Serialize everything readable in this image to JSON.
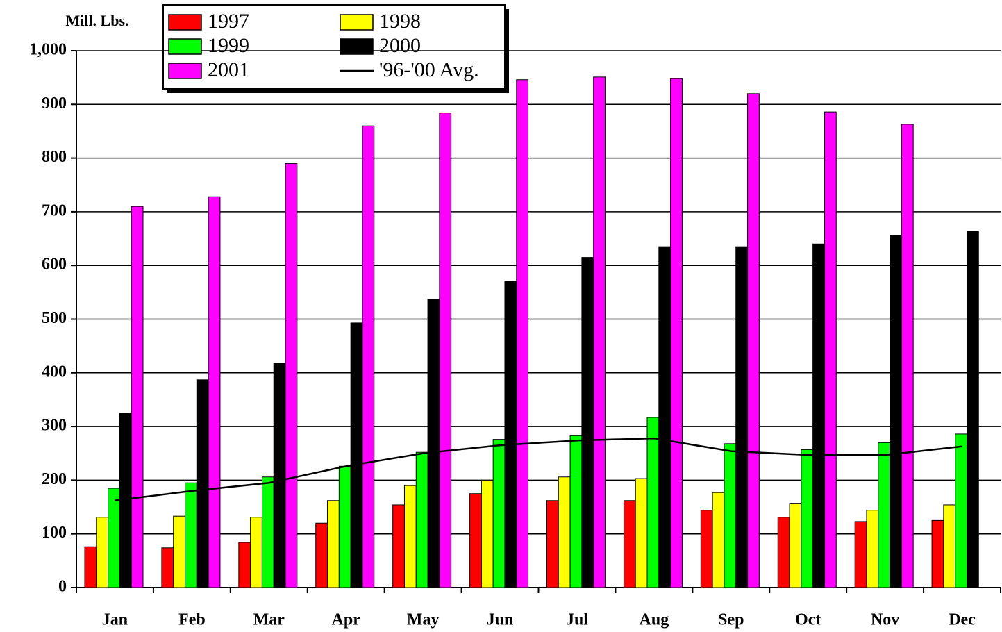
{
  "chart_data": {
    "type": "bar",
    "y_label": "Mill. Lbs.",
    "categories": [
      "Jan",
      "Feb",
      "Mar",
      "Apr",
      "May",
      "Jun",
      "Jul",
      "Aug",
      "Sep",
      "Oct",
      "Nov",
      "Dec"
    ],
    "series": [
      {
        "name": "1997",
        "color": "#ff0000",
        "values": [
          76,
          74,
          84,
          120,
          154,
          175,
          162,
          162,
          144,
          131,
          123,
          125
        ]
      },
      {
        "name": "1998",
        "color": "#ffff00",
        "values": [
          131,
          133,
          131,
          162,
          190,
          200,
          206,
          203,
          177,
          157,
          144,
          154
        ]
      },
      {
        "name": "1999",
        "color": "#00ff00",
        "values": [
          185,
          195,
          206,
          226,
          252,
          276,
          283,
          317,
          268,
          257,
          270,
          286
        ]
      },
      {
        "name": "2000",
        "color": "#000000",
        "values": [
          325,
          387,
          418,
          493,
          537,
          571,
          615,
          635,
          635,
          640,
          656,
          664
        ]
      },
      {
        "name": "2001",
        "color": "#ff00ff",
        "values": [
          710,
          728,
          790,
          860,
          884,
          946,
          951,
          948,
          920,
          886,
          863,
          null
        ]
      },
      {
        "name": "'96-'00 Avg.",
        "color": "#000000",
        "type": "line",
        "values": [
          162,
          180,
          195,
          226,
          250,
          265,
          274,
          278,
          254,
          247,
          247,
          263
        ]
      }
    ],
    "ylim": [
      0,
      1000
    ],
    "yticks": [
      0,
      100,
      200,
      300,
      400,
      500,
      600,
      700,
      800,
      900,
      {
        "value": 1000,
        "label": "1,000"
      }
    ],
    "grid": true
  }
}
